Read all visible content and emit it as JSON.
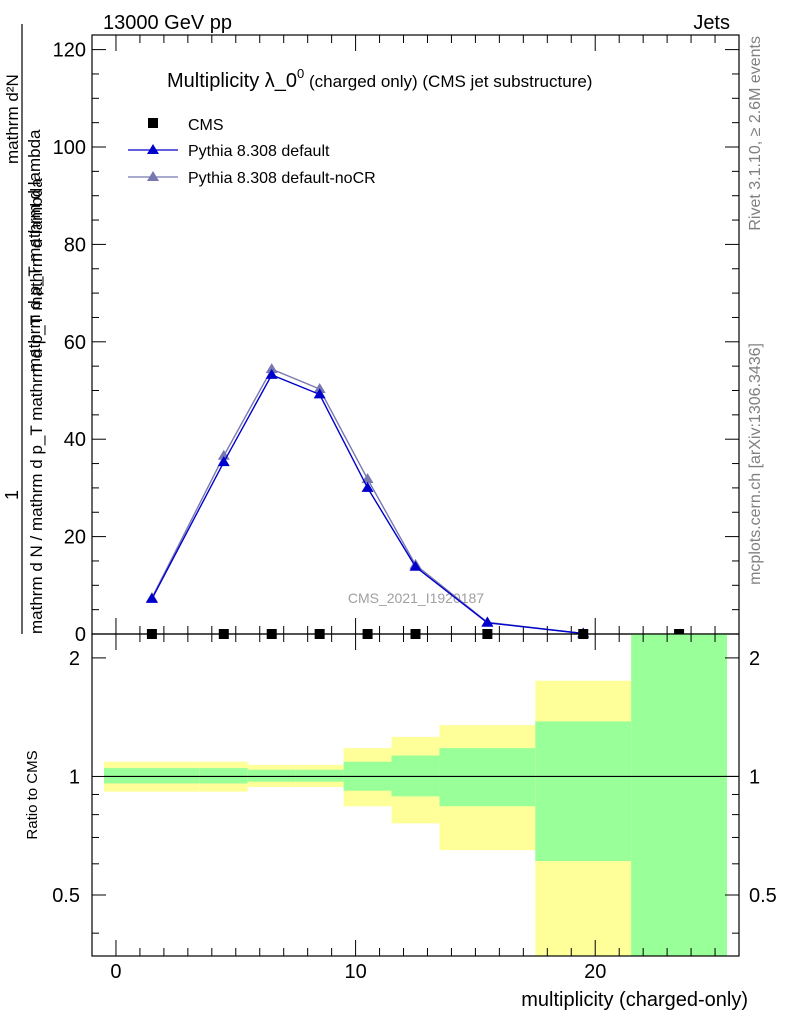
{
  "header": {
    "left_label": "13000 GeV pp",
    "right_label": "Jets"
  },
  "side_labels": {
    "rivet": "Rivet 3.1.10, ≥ 2.6M events",
    "mcplots": "mcplots.cern.ch [arXiv:1306.3436]"
  },
  "chart_data": [
    {
      "type": "line",
      "title": "Multiplicity λ_0",
      "title_superscript": "0",
      "title_suffix": " (charged only) (CMS jet substructure)",
      "ylabel_top": "1",
      "ylabel_frac_num": "mathrm d²N",
      "ylabel_frac_den": "mathrm d p_T mathrm d lambda",
      "ylabel_bottom": "mathrm d N / mathrm d p_T mathrm d p_T mathrm d lambda",
      "watermark": "CMS_2021_I1920187",
      "xlim": [
        -1,
        26
      ],
      "ylim": [
        0,
        123
      ],
      "yticks": [
        0,
        20,
        40,
        60,
        80,
        100,
        120
      ],
      "legend_position": "top-left",
      "series": [
        {
          "name": "CMS",
          "color": "#000000",
          "marker": "square",
          "x": [
            1.5,
            4.5,
            6.5,
            8.5,
            10.5,
            12.5,
            15.5,
            19.5,
            23.5
          ],
          "y": [
            0,
            0,
            0,
            0,
            0,
            0,
            0,
            0,
            0
          ]
        },
        {
          "name": "Pythia 8.308 default",
          "color": "#0000cc",
          "marker": "triangle",
          "x": [
            1.5,
            4.5,
            6.5,
            8.5,
            10.5,
            12.5,
            15.5,
            19.5
          ],
          "y": [
            7.2,
            35.3,
            53.2,
            49.2,
            30.0,
            13.8,
            2.3,
            0.1
          ]
        },
        {
          "name": "Pythia 8.308 default-noCR",
          "color": "#7878b0",
          "marker": "triangle",
          "x": [
            1.5,
            4.5,
            6.5,
            8.5,
            10.5,
            12.5,
            15.5,
            19.5
          ],
          "y": [
            7.4,
            36.6,
            54.4,
            50.3,
            31.8,
            14.2,
            2.4,
            0.1
          ]
        }
      ]
    },
    {
      "type": "area",
      "ylabel": "Ratio to CMS",
      "xlabel": "multiplicity (charged-only)",
      "xlim": [
        -1,
        26
      ],
      "ylim": [
        0.35,
        2.3
      ],
      "log_scale": true,
      "reference_line": 1,
      "xticks": [
        0,
        10,
        20
      ],
      "yticks": [
        0.5,
        1,
        2
      ],
      "bands": [
        {
          "x_low": -0.5,
          "x_high": 3.5,
          "yellow_low": 0.915,
          "yellow_high": 1.09,
          "green_low": 0.96,
          "green_high": 1.05
        },
        {
          "x_low": 3.5,
          "x_high": 5.5,
          "yellow_low": 0.915,
          "yellow_high": 1.09,
          "green_low": 0.96,
          "green_high": 1.05
        },
        {
          "x_low": 5.5,
          "x_high": 7.5,
          "yellow_low": 0.94,
          "yellow_high": 1.07,
          "green_low": 0.97,
          "green_high": 1.04
        },
        {
          "x_low": 7.5,
          "x_high": 9.5,
          "yellow_low": 0.94,
          "yellow_high": 1.07,
          "green_low": 0.97,
          "green_high": 1.04
        },
        {
          "x_low": 9.5,
          "x_high": 11.5,
          "yellow_low": 0.84,
          "yellow_high": 1.18,
          "green_low": 0.92,
          "green_high": 1.09
        },
        {
          "x_low": 11.5,
          "x_high": 13.5,
          "yellow_low": 0.76,
          "yellow_high": 1.26,
          "green_low": 0.89,
          "green_high": 1.13
        },
        {
          "x_low": 13.5,
          "x_high": 17.5,
          "yellow_low": 0.65,
          "yellow_high": 1.35,
          "green_low": 0.84,
          "green_high": 1.18
        },
        {
          "x_low": 17.5,
          "x_high": 21.5,
          "yellow_low": 0.35,
          "yellow_high": 1.75,
          "green_low": 0.61,
          "green_high": 1.38
        },
        {
          "x_low": 21.5,
          "x_high": 25.5,
          "yellow_low": 0.35,
          "yellow_high": 2.3,
          "green_low": 0.35,
          "green_high": 2.3
        }
      ],
      "band_colors": {
        "yellow": "#ffff99",
        "green": "#99ff99"
      }
    }
  ]
}
